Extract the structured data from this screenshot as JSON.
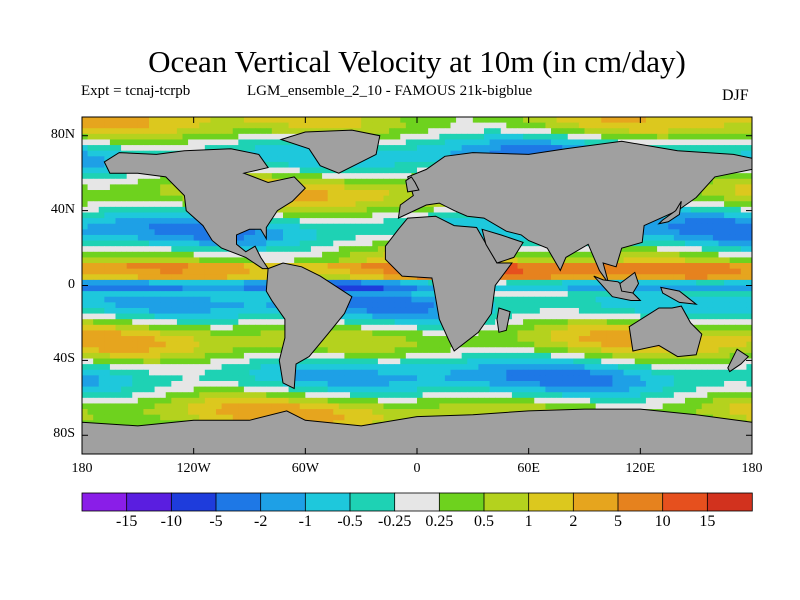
{
  "title": "Ocean Vertical Velocity at 10m (in cm/day)",
  "expt": "Expt = tcnaj-tcrpb",
  "ensemble": "LGM_ensemble_2_10 - FAMOUS 21k-bigblue",
  "season": "DJF",
  "chart_data": {
    "type": "heatmap",
    "title": "Ocean Vertical Velocity at 10m (in cm/day)",
    "variable": "ocean vertical velocity at 10 m depth",
    "units": "cm/day",
    "season": "DJF",
    "x_range": [
      -180,
      180
    ],
    "y_range": [
      -90,
      90
    ],
    "x_ticks": [
      "180",
      "120W",
      "60W",
      "0",
      "60E",
      "120E",
      "180"
    ],
    "y_ticks": [
      "80N",
      "40N",
      "0",
      "40S",
      "80S"
    ],
    "colorbar_levels": [
      "-15",
      "-10",
      "-5",
      "-2",
      "-1",
      "-0.5",
      "-0.25",
      "0.25",
      "0.5",
      "1",
      "2",
      "5",
      "10",
      "15"
    ],
    "colorbar_colors": [
      "#8a1ee8",
      "#5a1ee0",
      "#1e3cdc",
      "#1e78e6",
      "#1ea0e6",
      "#1ec8dc",
      "#1ed2b4",
      "#e6e6e6",
      "#6ed21e",
      "#b4d21e",
      "#dcc81e",
      "#e6a51e",
      "#e6821e",
      "#e6501e",
      "#d2321e"
    ],
    "land_color": "#a0a0a0"
  }
}
